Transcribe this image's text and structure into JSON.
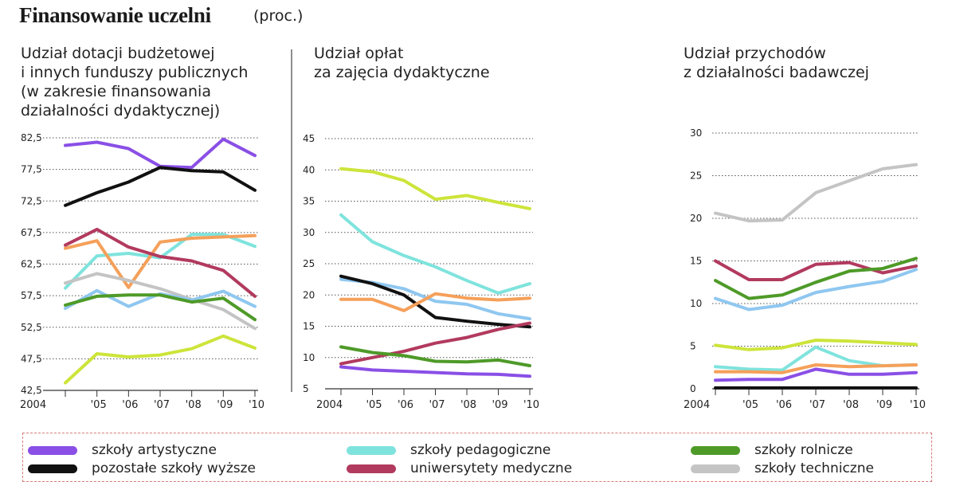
{
  "header": {
    "title": "Finansowanie uczelni",
    "unit": "(proc.)"
  },
  "colors": {
    "szkoly_artystyczne": "#8a4fe6",
    "pozostale_szkoly_wyzsze": "#111111",
    "szkoly_pedagogiczne": "#7fe3dd",
    "uniwersytety_medyczne": "#b23a5e",
    "szkoly_rolnicze": "#4e9a28",
    "szkoly_techniczne": "#c4c4c4",
    "uniwersytety": "#f5a05a",
    "ekonomiczne": "#8fc7f0",
    "wychowania_fizycznego": "#cde43a"
  },
  "legend": [
    {
      "label": "szkoły artystyczne",
      "color": "#8a4fe6"
    },
    {
      "label": "pozostałe szkoły wyższe",
      "color": "#111111"
    },
    {
      "label": "szkoły pedagogiczne",
      "color": "#7fe3dd"
    },
    {
      "label": "uniwersytety medyczne",
      "color": "#b23a5e"
    },
    {
      "label": "szkoły rolnicze",
      "color": "#4e9a28"
    },
    {
      "label": "szkoły techniczne",
      "color": "#c4c4c4"
    }
  ],
  "chart_data": [
    {
      "type": "line",
      "title": "Udział dotacji budżetowej\ni innych funduszy publicznych\n(w zakresie finansowania\ndziałalności dydaktycznej)",
      "x": [
        "2004",
        "'05",
        "'06",
        "'07",
        "'08",
        "'09",
        "'10"
      ],
      "ylim": [
        42.5,
        82.5
      ],
      "yticks": [
        "82,5",
        "77,5",
        "72,5",
        "67,5",
        "62,5",
        "57,5",
        "52,5",
        "47,5",
        "42,5"
      ],
      "grid": true,
      "series": [
        {
          "color": "#8a4fe6",
          "values": [
            81.3,
            81.8,
            80.8,
            78.0,
            77.8,
            82.3,
            79.7
          ]
        },
        {
          "color": "#111111",
          "values": [
            71.8,
            73.8,
            75.5,
            77.8,
            77.3,
            77.1,
            74.2
          ]
        },
        {
          "color": "#7fe3dd",
          "values": [
            58.7,
            63.8,
            64.2,
            63.5,
            67.2,
            67.2,
            65.3
          ]
        },
        {
          "color": "#f5a05a",
          "values": [
            65.0,
            66.2,
            58.8,
            66.0,
            66.6,
            66.8,
            67.0
          ]
        },
        {
          "color": "#b23a5e",
          "values": [
            65.5,
            68.0,
            65.2,
            63.7,
            63.0,
            61.5,
            57.4
          ]
        },
        {
          "color": "#c4c4c4",
          "values": [
            59.5,
            61.0,
            59.9,
            58.6,
            56.9,
            55.3,
            52.3
          ]
        },
        {
          "color": "#8fc7f0",
          "values": [
            55.5,
            58.3,
            55.8,
            57.8,
            56.8,
            58.2,
            55.8
          ]
        },
        {
          "color": "#4e9a28",
          "values": [
            56.0,
            57.4,
            57.6,
            57.6,
            56.5,
            57.1,
            53.7
          ]
        },
        {
          "color": "#cde43a",
          "values": [
            43.7,
            48.3,
            47.8,
            48.1,
            49.1,
            51.1,
            49.2
          ]
        }
      ]
    },
    {
      "type": "line",
      "title": "Udział opłat\nza zajęcia dydaktyczne",
      "x": [
        "2004",
        "'05",
        "'06",
        "'07",
        "'08",
        "'09",
        "'10"
      ],
      "ylim": [
        5,
        45
      ],
      "yticks": [
        "45",
        "40",
        "35",
        "30",
        "25",
        "20",
        "15",
        "10",
        "5"
      ],
      "grid": true,
      "series": [
        {
          "color": "#cde43a",
          "values": [
            40.2,
            39.7,
            38.3,
            35.3,
            35.9,
            34.8,
            33.8
          ]
        },
        {
          "color": "#7fe3dd",
          "values": [
            32.8,
            28.5,
            26.3,
            24.5,
            22.3,
            20.3,
            21.8
          ]
        },
        {
          "color": "#8fc7f0",
          "values": [
            22.5,
            22.0,
            21.0,
            19.0,
            18.5,
            17.0,
            16.2
          ]
        },
        {
          "color": "#111111",
          "values": [
            23.0,
            21.8,
            20.0,
            16.4,
            15.8,
            15.3,
            14.9
          ]
        },
        {
          "color": "#f5a05a",
          "values": [
            19.3,
            19.3,
            17.5,
            20.2,
            19.5,
            19.2,
            19.5
          ]
        },
        {
          "color": "#b23a5e",
          "values": [
            9.0,
            10.0,
            11.0,
            12.3,
            13.2,
            14.5,
            15.5
          ]
        },
        {
          "color": "#4e9a28",
          "values": [
            11.7,
            10.8,
            10.3,
            9.4,
            9.3,
            9.6,
            8.7
          ]
        },
        {
          "color": "#8a4fe6",
          "values": [
            8.5,
            8.0,
            7.8,
            7.6,
            7.4,
            7.3,
            7.0
          ]
        }
      ]
    },
    {
      "type": "line",
      "title": "Udział przychodów\nz działalności badawczej",
      "x": [
        "2004",
        "'05",
        "'06",
        "'07",
        "'08",
        "'09",
        "'10"
      ],
      "ylim": [
        0,
        30
      ],
      "yticks": [
        "30",
        "25",
        "20",
        "15",
        "10",
        "5",
        "0"
      ],
      "grid": true,
      "series": [
        {
          "color": "#c4c4c4",
          "values": [
            20.6,
            19.7,
            19.8,
            23.0,
            24.4,
            25.8,
            26.3
          ]
        },
        {
          "color": "#b23a5e",
          "values": [
            15.0,
            12.8,
            12.8,
            14.6,
            14.8,
            13.6,
            14.4
          ]
        },
        {
          "color": "#4e9a28",
          "values": [
            12.7,
            10.6,
            11.0,
            12.5,
            13.8,
            14.1,
            15.3
          ]
        },
        {
          "color": "#8fc7f0",
          "values": [
            10.6,
            9.3,
            9.8,
            11.3,
            12.0,
            12.6,
            14.0
          ]
        },
        {
          "color": "#cde43a",
          "values": [
            5.1,
            4.6,
            4.8,
            5.7,
            5.6,
            5.4,
            5.2
          ]
        },
        {
          "color": "#7fe3dd",
          "values": [
            2.6,
            2.3,
            2.2,
            4.9,
            3.3,
            2.7,
            2.8
          ]
        },
        {
          "color": "#f5a05a",
          "values": [
            2.0,
            2.0,
            1.9,
            2.8,
            2.6,
            2.7,
            2.8
          ]
        },
        {
          "color": "#8a4fe6",
          "values": [
            1.0,
            1.1,
            1.1,
            2.3,
            1.7,
            1.7,
            1.9
          ]
        },
        {
          "color": "#111111",
          "values": [
            0.1,
            0.1,
            0.1,
            0.1,
            0.1,
            0.1,
            0.1
          ]
        }
      ]
    }
  ]
}
